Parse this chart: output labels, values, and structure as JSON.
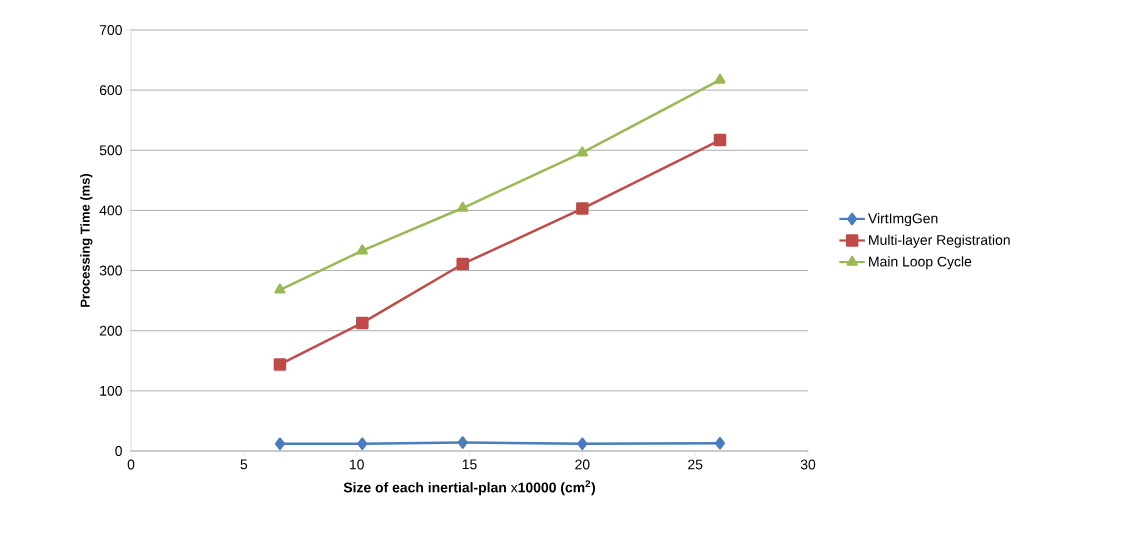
{
  "chart_data": {
    "type": "line",
    "xlabel": "**Size of each inertial-plan**  x**10000 (cm$^{2}$)**",
    "ylabel": "Processing Time (ms)",
    "xlim": [
      0,
      30
    ],
    "xticks": [
      0,
      5,
      10,
      15,
      20,
      25,
      30
    ],
    "ylim": [
      0,
      700
    ],
    "yticks": [
      0,
      100,
      200,
      300,
      400,
      500,
      600,
      700
    ],
    "grid": "y",
    "legend": "right",
    "x": [
      6.6,
      10.25,
      14.7,
      20,
      26.1
    ],
    "series": [
      {
        "name": "VirtImgGen",
        "color": "#4a7ebb",
        "marker": "diamond",
        "values": [
          12,
          12,
          14,
          12,
          13
        ]
      },
      {
        "name": "Multi-layer Registration",
        "color": "#be4b48",
        "marker": "square",
        "values": [
          144,
          213,
          311,
          403,
          517
        ]
      },
      {
        "name": "Main Loop Cycle",
        "color": "#98b954",
        "marker": "triangle",
        "values": [
          268,
          333,
          404,
          496,
          617
        ]
      }
    ]
  }
}
